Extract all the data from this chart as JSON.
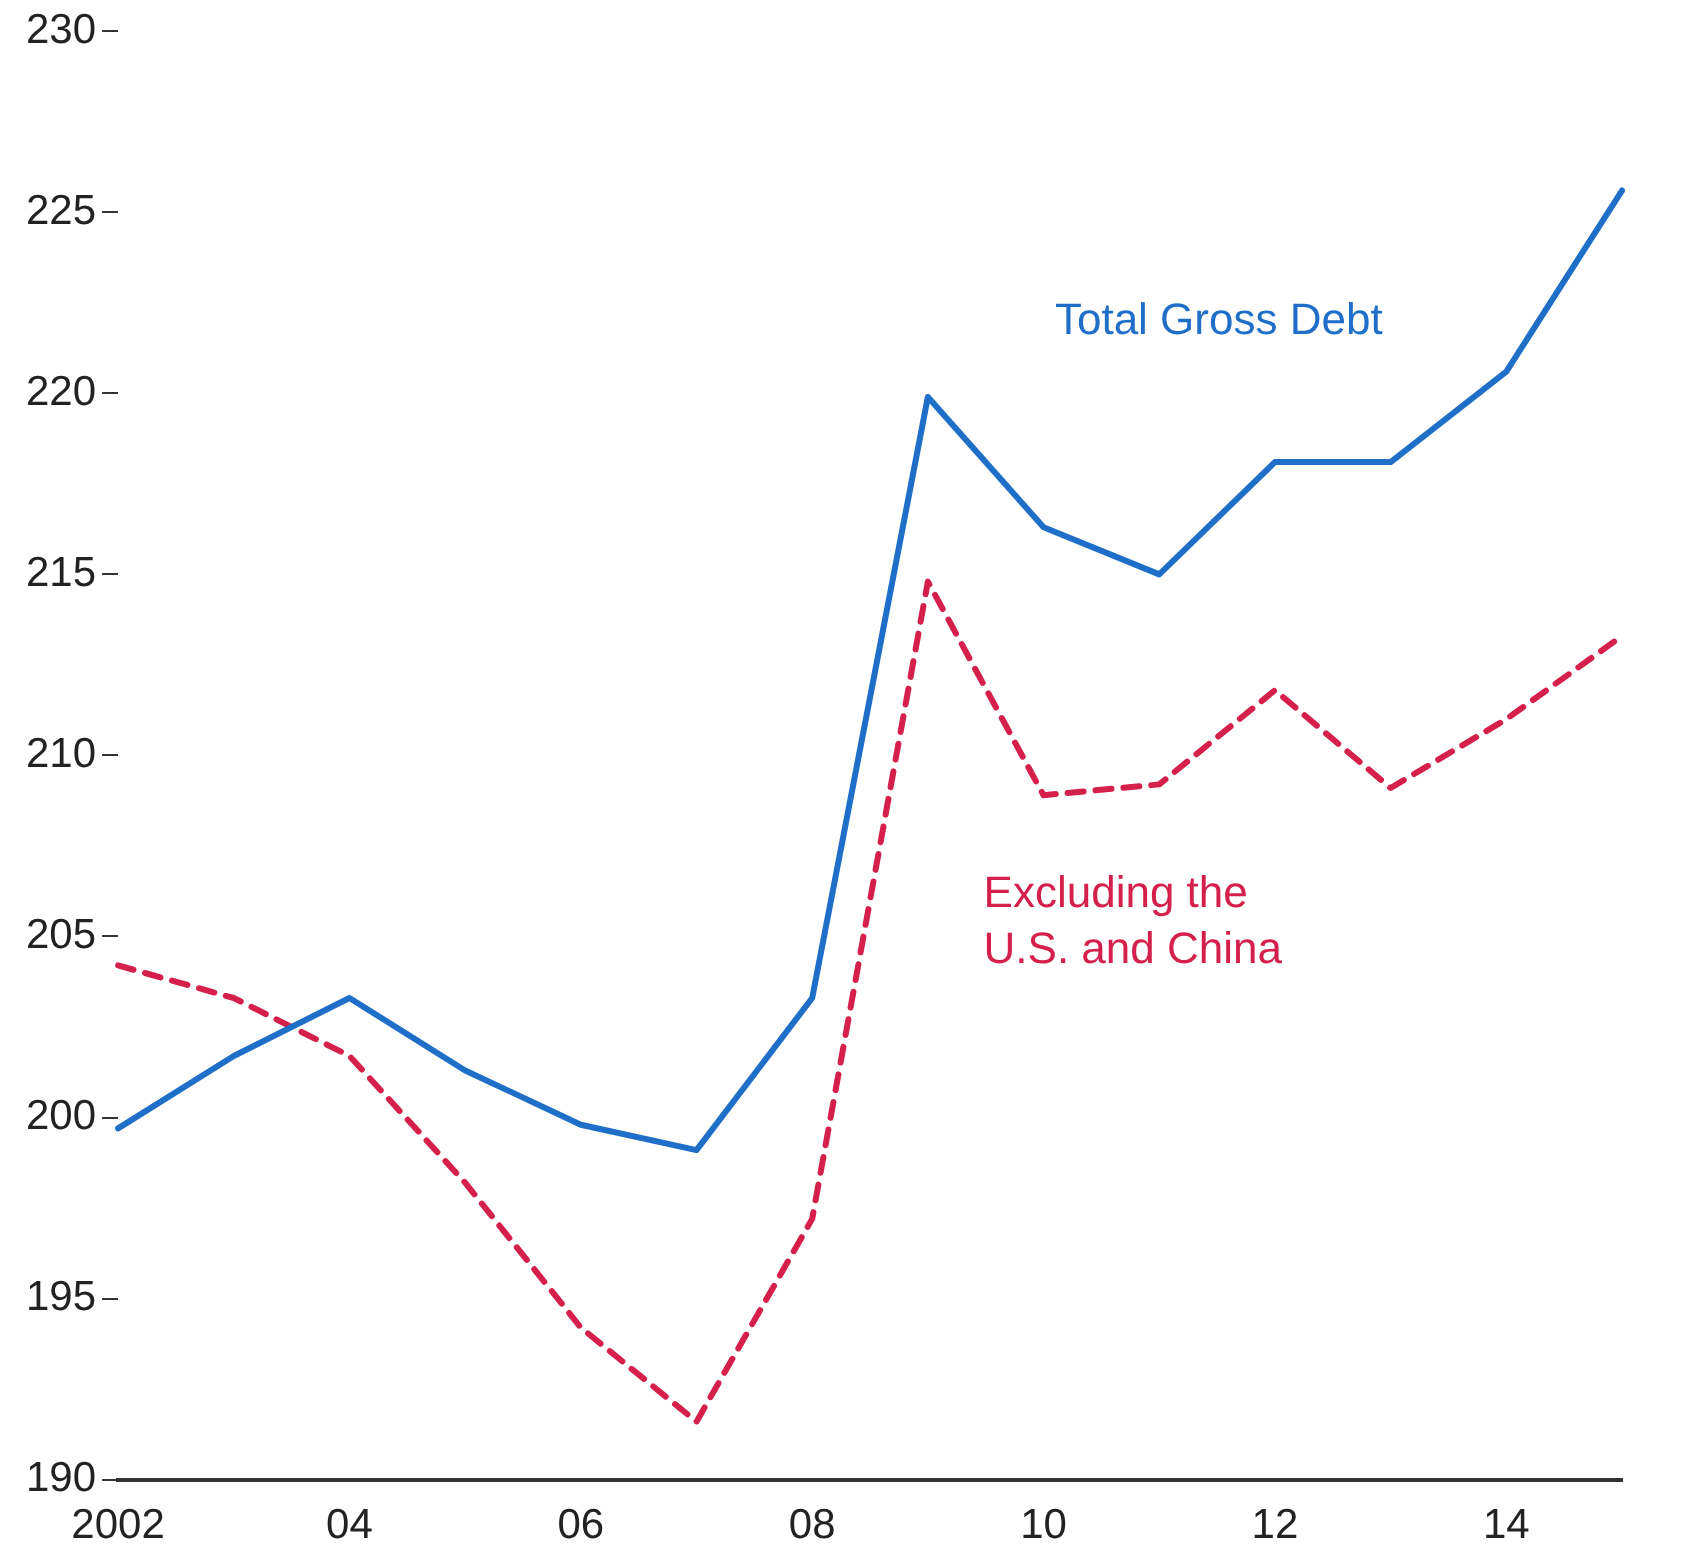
{
  "chart_data": {
    "type": "line",
    "categories": [
      "2002",
      null,
      "04",
      null,
      "06",
      null,
      "08",
      null,
      "10",
      null,
      "12",
      null,
      "14",
      null
    ],
    "series": [
      {
        "name": "Total Gross Debt",
        "color": "#1f6fc9",
        "line_style": "solid",
        "values": [
          199.7,
          201.7,
          203.3,
          201.3,
          199.8,
          199.1,
          203.3,
          219.9,
          216.3,
          215.0,
          218.1,
          218.1,
          220.6,
          225.6
        ]
      },
      {
        "name": "Excluding the U.S. and China",
        "color": "#d4204a",
        "line_style": "dashed",
        "values": [
          204.2,
          203.3,
          201.7,
          198.2,
          194.2,
          191.6,
          197.2,
          214.8,
          208.9,
          209.2,
          211.8,
          209.1,
          211.0,
          213.3
        ]
      }
    ],
    "ylim": [
      190,
      230
    ],
    "yticks": [
      190,
      195,
      200,
      205,
      210,
      215,
      220,
      225,
      230
    ],
    "grid": false,
    "legend": false,
    "marker": "none"
  }
}
